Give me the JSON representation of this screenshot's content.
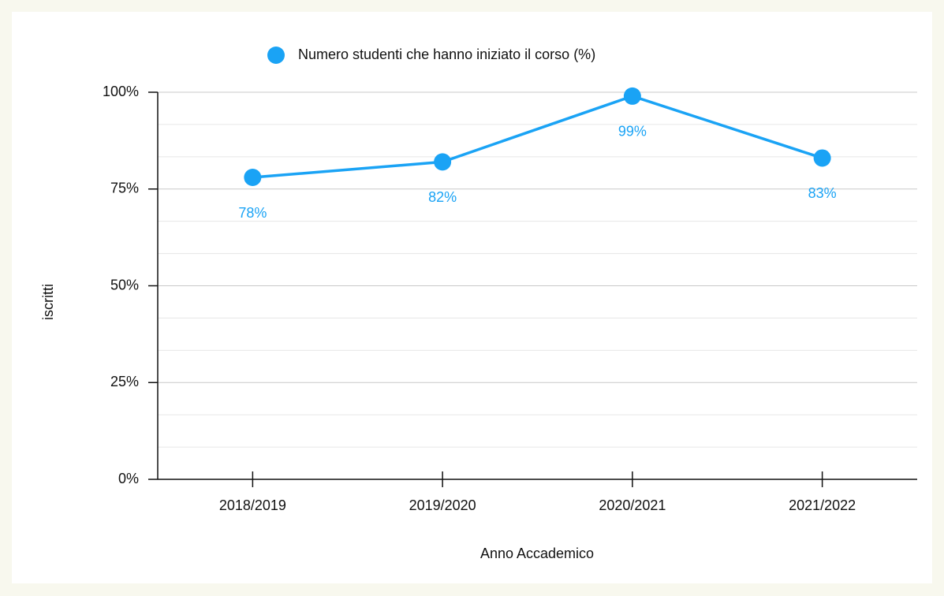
{
  "chart_data": {
    "type": "line",
    "categories": [
      "2018/2019",
      "2019/2020",
      "2020/2021",
      "2021/2022"
    ],
    "series": [
      {
        "name": "Numero studenti che hanno iniziato il corso (%)",
        "color": "#1aa3f5",
        "values": [
          78,
          82,
          99,
          83
        ],
        "value_labels": [
          "78%",
          "82%",
          "99%",
          "83%"
        ]
      }
    ],
    "ylim": [
      0,
      100
    ],
    "yticks": [
      {
        "value": 0,
        "label": "0%"
      },
      {
        "value": 25,
        "label": "25%"
      },
      {
        "value": 50,
        "label": "50%"
      },
      {
        "value": 75,
        "label": "75%"
      },
      {
        "value": 100,
        "label": "100%"
      }
    ],
    "grid": true,
    "minor_grid_divisions": 3,
    "xlabel": "Anno Accademico",
    "ylabel": "iscritti",
    "legend": "top"
  }
}
